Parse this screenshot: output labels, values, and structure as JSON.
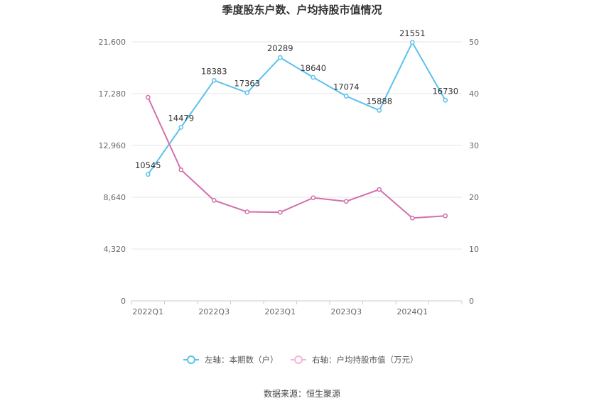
{
  "chart_data": {
    "type": "line",
    "title": "季度股东户数、户均持股市值情况",
    "categories": [
      "2022Q1",
      "2022Q2",
      "2022Q3",
      "2022Q4",
      "2023Q1",
      "2023Q2",
      "2023Q3",
      "2023Q4",
      "2024Q1",
      "2024Q2"
    ],
    "x_tick_labels": [
      "2022Q1",
      "2022Q3",
      "2023Q1",
      "2023Q3",
      "2024Q1"
    ],
    "left_axis": {
      "min": 0,
      "max": 21600,
      "ticks": [
        "0",
        "4,320",
        "8,640",
        "12,960",
        "17,280",
        "21,600"
      ]
    },
    "right_axis": {
      "min": 0,
      "max": 50,
      "ticks": [
        "0",
        "10",
        "20",
        "30",
        "40",
        "50"
      ]
    },
    "series": [
      {
        "name": "左轴：本期数（户）",
        "axis": "left",
        "color": "#5bc1ee",
        "values": [
          10545,
          14479,
          18383,
          17363,
          20289,
          18640,
          17074,
          15888,
          21551,
          16730
        ],
        "labels": [
          "10545",
          "14479",
          "18383",
          "17363",
          "20289",
          "18640",
          "17074",
          "15888",
          "21551",
          "16730"
        ]
      },
      {
        "name": "右轴：户均持股市值（万元）",
        "axis": "right",
        "color": "#d36fad",
        "values": [
          39.3,
          25.3,
          19.4,
          17.2,
          17.1,
          19.9,
          19.2,
          21.5,
          16.0,
          16.4
        ]
      }
    ],
    "grid": true,
    "legend_position": "bottom"
  },
  "source": "数据来源：恒生聚源"
}
